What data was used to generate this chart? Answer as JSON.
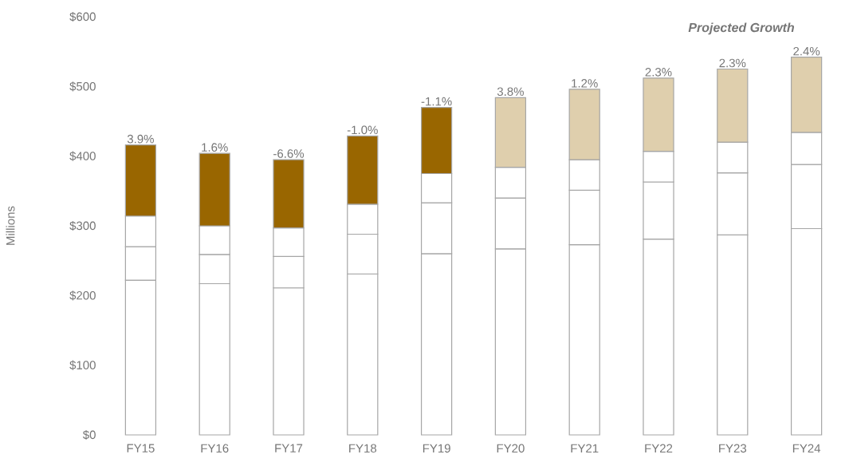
{
  "chart_data": {
    "type": "bar",
    "stacked": true,
    "ylabel": "Millions",
    "categories": [
      "FY15",
      "FY16",
      "FY17",
      "FY18",
      "FY19",
      "FY20",
      "FY21",
      "FY22",
      "FY23",
      "FY24"
    ],
    "series": [
      {
        "color": "#ffffff",
        "values": [
          222,
          217,
          211,
          231,
          260,
          267,
          273,
          281,
          287,
          296
        ]
      },
      {
        "color": "#ffffff",
        "values": [
          48,
          42,
          45,
          57,
          73,
          73,
          78,
          82,
          89,
          92
        ]
      },
      {
        "color": "#ffffff",
        "values": [
          44,
          41,
          41,
          43,
          42,
          44,
          44,
          44,
          44,
          46
        ]
      },
      {
        "colors": [
          "#996600",
          "#996600",
          "#996600",
          "#996600",
          "#996600",
          "#dfcfad",
          "#dfcfad",
          "#dfcfad",
          "#dfcfad",
          "#dfcfad"
        ],
        "values": [
          102,
          104,
          98,
          98,
          95,
          100,
          101,
          105,
          105,
          108
        ]
      }
    ],
    "ylim": [
      0,
      600
    ],
    "yticks": [
      {
        "value": 0,
        "label": "$0"
      },
      {
        "value": 100,
        "label": "$100"
      },
      {
        "value": 200,
        "label": "$200"
      },
      {
        "value": 300,
        "label": "$300"
      },
      {
        "value": 400,
        "label": "$400"
      },
      {
        "value": 500,
        "label": "$500"
      },
      {
        "value": 600,
        "label": "$600"
      }
    ],
    "annotations": [
      "**Projected Growth**",
      {
        "text": "3.9%",
        "x": "FY15",
        "y": 416
      },
      {
        "text": "1.6%",
        "x": "FY16",
        "y": 404
      },
      {
        "text": "-6.6%",
        "x": "FY17",
        "y": 395
      },
      {
        "text": "-1.0%",
        "x": "FY18",
        "y": 429
      },
      {
        "text": "-1.1%",
        "x": "FY19",
        "y": 470
      },
      {
        "text": "3.8%",
        "x": "FY20",
        "y": 484
      },
      {
        "text": "1.2%",
        "x": "FY21",
        "y": 496
      },
      {
        "text": "2.3%",
        "x": "FY22",
        "y": 512
      },
      {
        "text": "2.3%",
        "x": "FY23",
        "y": 525
      },
      {
        "text": "2.4%",
        "x": "FY24",
        "y": 542
      }
    ]
  }
}
